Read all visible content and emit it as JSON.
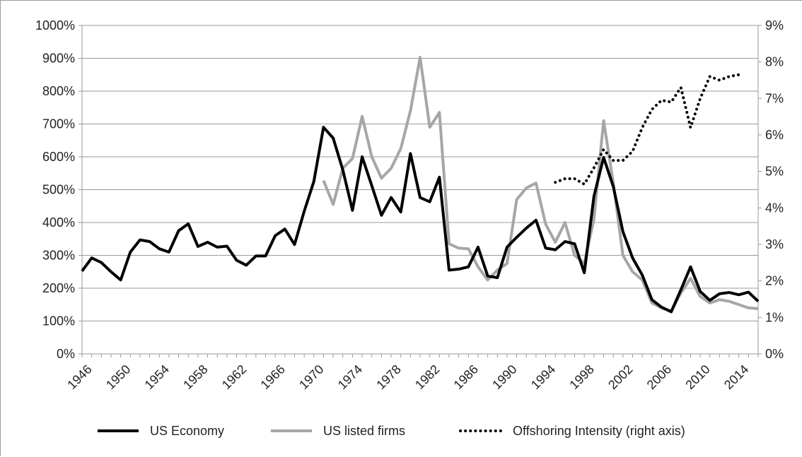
{
  "chart_data": {
    "type": "line",
    "title": "",
    "xlabel": "",
    "ylabel": "",
    "x_tick_labels": [
      "1946",
      "1950",
      "1954",
      "1958",
      "1962",
      "1966",
      "1970",
      "1974",
      "1978",
      "1982",
      "1986",
      "1990",
      "1994",
      "1998",
      "2002",
      "2006",
      "2010",
      "2014"
    ],
    "x_range": [
      1946,
      2016
    ],
    "left_axis": {
      "range": [
        0,
        1000
      ],
      "tick_labels": [
        "0%",
        "100%",
        "200%",
        "300%",
        "400%",
        "500%",
        "600%",
        "700%",
        "800%",
        "900%",
        "1000%"
      ],
      "ticks": [
        0,
        100,
        200,
        300,
        400,
        500,
        600,
        700,
        800,
        900,
        1000
      ]
    },
    "right_axis": {
      "range": [
        0,
        9
      ],
      "tick_labels": [
        "0%",
        "1%",
        "2%",
        "3%",
        "4%",
        "5%",
        "6%",
        "7%",
        "8%",
        "9%"
      ],
      "ticks": [
        0,
        1,
        2,
        3,
        4,
        5,
        6,
        7,
        8,
        9
      ]
    },
    "grid": "horizontal",
    "legend_position": "bottom",
    "series": [
      {
        "name": "US Economy",
        "axis": "left",
        "color": "#000000",
        "style": "solid",
        "x": [
          1946,
          1947,
          1948,
          1949,
          1950,
          1951,
          1952,
          1953,
          1954,
          1955,
          1956,
          1957,
          1958,
          1959,
          1960,
          1961,
          1962,
          1963,
          1964,
          1965,
          1966,
          1967,
          1968,
          1969,
          1970,
          1971,
          1972,
          1973,
          1974,
          1975,
          1976,
          1977,
          1978,
          1979,
          1980,
          1981,
          1982,
          1983,
          1984,
          1985,
          1986,
          1987,
          1988,
          1989,
          1990,
          1991,
          1992,
          1993,
          1994,
          1995,
          1996,
          1997,
          1998,
          1999,
          2000,
          2001,
          2002,
          2003,
          2004,
          2005,
          2006,
          2007,
          2008,
          2009,
          2010,
          2011,
          2012,
          2013,
          2014,
          2015,
          2016
        ],
        "values": [
          252,
          292,
          278,
          250,
          225,
          310,
          347,
          342,
          320,
          310,
          375,
          396,
          327,
          340,
          325,
          328,
          285,
          270,
          298,
          298,
          360,
          380,
          333,
          434,
          525,
          690,
          657,
          560,
          437,
          600,
          512,
          422,
          476,
          432,
          610,
          476,
          463,
          538,
          255,
          258,
          265,
          325,
          237,
          232,
          325,
          355,
          383,
          407,
          322,
          317,
          342,
          335,
          247,
          480,
          598,
          510,
          372,
          292,
          240,
          165,
          142,
          128,
          195,
          265,
          190,
          163,
          183,
          187,
          180,
          188,
          160
        ]
      },
      {
        "name": "US listed firms",
        "axis": "left",
        "color": "#a6a6a6",
        "style": "solid",
        "x": [
          1971,
          1972,
          1973,
          1974,
          1975,
          1976,
          1977,
          1978,
          1979,
          1980,
          1981,
          1982,
          1983,
          1984,
          1985,
          1986,
          1987,
          1988,
          1989,
          1990,
          1991,
          1992,
          1993,
          1994,
          1995,
          1996,
          1997,
          1998,
          1999,
          2000,
          2001,
          2002,
          2003,
          2004,
          2005,
          2006,
          2007,
          2008,
          2009,
          2010,
          2011,
          2012,
          2013,
          2014,
          2015,
          2016
        ],
        "values": [
          528,
          455,
          565,
          595,
          723,
          600,
          535,
          565,
          625,
          740,
          903,
          690,
          735,
          335,
          322,
          320,
          265,
          225,
          255,
          275,
          470,
          505,
          520,
          395,
          340,
          400,
          300,
          275,
          410,
          710,
          520,
          300,
          250,
          225,
          155,
          140,
          130,
          185,
          230,
          175,
          155,
          165,
          160,
          150,
          140,
          138
        ]
      },
      {
        "name": "Offshoring Intensity (right axis)",
        "axis": "right",
        "color": "#000000",
        "style": "dotted",
        "x": [
          1995,
          1996,
          1997,
          1998,
          1999,
          2000,
          2001,
          2002,
          2003,
          2004,
          2005,
          2006,
          2007,
          2008,
          2009,
          2010,
          2011,
          2012,
          2013,
          2014
        ],
        "values": [
          4.7,
          4.8,
          4.8,
          4.65,
          5.1,
          5.6,
          5.3,
          5.3,
          5.55,
          6.2,
          6.7,
          6.95,
          6.9,
          7.3,
          6.2,
          7.0,
          7.6,
          7.5,
          7.6,
          7.65
        ]
      }
    ]
  }
}
